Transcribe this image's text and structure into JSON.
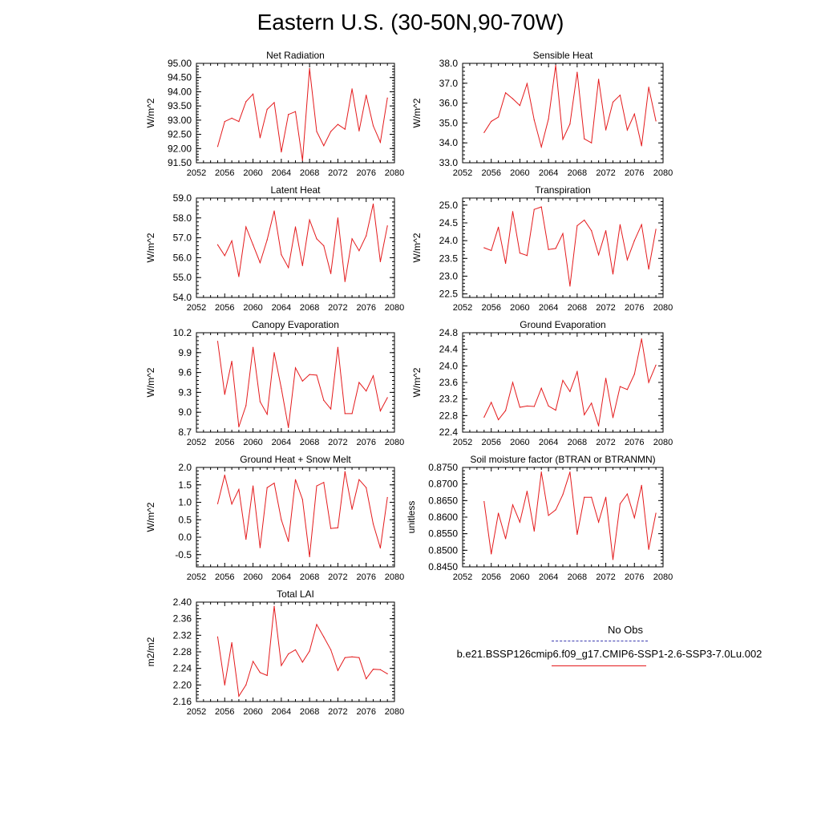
{
  "title": "Eastern U.S. (30-50N,90-70W)",
  "legend": {
    "obs_label": "No Obs",
    "model_label": "b.e21.BSSP126cmip6.f09_g17.CMIP6-SSP1-2.6-SSP3-7.0Lu.002",
    "obs_color": "#3a3ab0",
    "model_color": "#e41a1c"
  },
  "chart_data": [
    {
      "type": "line",
      "title": "Net Radiation",
      "ylabel": "W/m^2",
      "xlim": [
        2052,
        2080
      ],
      "x_ticks": [
        "2052",
        "2056",
        "2060",
        "2064",
        "2068",
        "2072",
        "2076",
        "2080"
      ],
      "ylim": [
        91.5,
        95.0
      ],
      "y_ticks": [
        "91.50",
        "92.00",
        "92.50",
        "93.00",
        "93.50",
        "94.00",
        "94.50",
        "95.00"
      ],
      "x": [
        2055,
        2056,
        2057,
        2058,
        2059,
        2060,
        2061,
        2062,
        2063,
        2064,
        2065,
        2066,
        2067,
        2068,
        2069,
        2070,
        2071,
        2072,
        2073,
        2074,
        2075,
        2076,
        2077,
        2078,
        2079
      ],
      "values": [
        92.07,
        92.95,
        93.07,
        92.95,
        93.65,
        93.92,
        92.38,
        93.38,
        93.62,
        91.88,
        93.2,
        93.3,
        91.58,
        94.82,
        92.6,
        92.1,
        92.6,
        92.85,
        92.68,
        94.1,
        92.62,
        93.88,
        92.8,
        92.22,
        93.78
      ],
      "color": "#e41a1c"
    },
    {
      "type": "line",
      "title": "Sensible Heat",
      "ylabel": "W/m^2",
      "xlim": [
        2052,
        2080
      ],
      "x_ticks": [
        "2052",
        "2056",
        "2060",
        "2064",
        "2068",
        "2072",
        "2076",
        "2080"
      ],
      "ylim": [
        33.0,
        38.0
      ],
      "y_ticks": [
        "33.0",
        "34.0",
        "35.0",
        "36.0",
        "37.0",
        "38.0"
      ],
      "x": [
        2055,
        2056,
        2057,
        2058,
        2059,
        2060,
        2061,
        2062,
        2063,
        2064,
        2065,
        2066,
        2067,
        2068,
        2069,
        2070,
        2071,
        2072,
        2073,
        2074,
        2075,
        2076,
        2077,
        2078,
        2079
      ],
      "values": [
        34.52,
        35.08,
        35.3,
        36.52,
        36.22,
        35.88,
        36.98,
        35.15,
        33.8,
        35.2,
        37.9,
        34.18,
        34.95,
        37.55,
        34.2,
        34.0,
        37.2,
        34.65,
        36.05,
        36.4,
        34.65,
        35.45,
        33.85,
        36.8,
        35.1
      ],
      "color": "#e41a1c"
    },
    {
      "type": "line",
      "title": "Latent Heat",
      "ylabel": "W/m^2",
      "xlim": [
        2052,
        2080
      ],
      "x_ticks": [
        "2052",
        "2056",
        "2060",
        "2064",
        "2068",
        "2072",
        "2076",
        "2080"
      ],
      "ylim": [
        54.0,
        59.0
      ],
      "y_ticks": [
        "54.0",
        "55.0",
        "56.0",
        "57.0",
        "58.0",
        "59.0"
      ],
      "x": [
        2055,
        2056,
        2057,
        2058,
        2059,
        2060,
        2061,
        2062,
        2063,
        2064,
        2065,
        2066,
        2067,
        2068,
        2069,
        2070,
        2071,
        2072,
        2073,
        2074,
        2075,
        2076,
        2077,
        2078,
        2079
      ],
      "values": [
        56.65,
        56.1,
        56.85,
        55.05,
        57.55,
        56.65,
        55.75,
        56.9,
        58.35,
        56.15,
        55.5,
        57.55,
        55.6,
        57.9,
        56.95,
        56.6,
        55.2,
        58.0,
        54.8,
        56.95,
        56.35,
        57.1,
        58.7,
        55.8,
        57.6
      ],
      "color": "#e41a1c"
    },
    {
      "type": "line",
      "title": "Transpiration",
      "ylabel": "W/m^2",
      "xlim": [
        2052,
        2080
      ],
      "x_ticks": [
        "2052",
        "2056",
        "2060",
        "2064",
        "2068",
        "2072",
        "2076",
        "2080"
      ],
      "ylim": [
        22.4,
        25.2
      ],
      "y_ticks": [
        "22.5",
        "23.0",
        "23.5",
        "24.0",
        "24.5",
        "25.0"
      ],
      "x": [
        2055,
        2056,
        2057,
        2058,
        2059,
        2060,
        2061,
        2062,
        2063,
        2064,
        2065,
        2066,
        2067,
        2068,
        2069,
        2070,
        2071,
        2072,
        2073,
        2074,
        2075,
        2076,
        2077,
        2078,
        2079
      ],
      "values": [
        23.8,
        23.72,
        24.38,
        23.36,
        24.82,
        23.65,
        23.58,
        24.88,
        24.95,
        23.75,
        23.78,
        24.2,
        22.72,
        24.42,
        24.58,
        24.28,
        23.6,
        24.28,
        23.06,
        24.45,
        23.46,
        24.0,
        24.45,
        23.2,
        24.32
      ],
      "color": "#e41a1c"
    },
    {
      "type": "line",
      "title": "Canopy Evaporation",
      "ylabel": "W/m^2",
      "xlim": [
        2052,
        2080
      ],
      "x_ticks": [
        "2052",
        "2056",
        "2060",
        "2064",
        "2068",
        "2072",
        "2076",
        "2080"
      ],
      "ylim": [
        8.7,
        10.2
      ],
      "y_ticks": [
        "8.7",
        "9.0",
        "9.3",
        "9.6",
        "9.9",
        "10.2"
      ],
      "x": [
        2055,
        2056,
        2057,
        2058,
        2059,
        2060,
        2061,
        2062,
        2063,
        2064,
        2065,
        2066,
        2067,
        2068,
        2069,
        2070,
        2071,
        2072,
        2073,
        2074,
        2075,
        2076,
        2077,
        2078,
        2079
      ],
      "values": [
        10.07,
        9.27,
        9.77,
        8.78,
        9.1,
        9.98,
        9.16,
        8.97,
        9.9,
        9.36,
        8.77,
        9.67,
        9.47,
        9.57,
        9.56,
        9.18,
        9.05,
        9.98,
        8.98,
        8.98,
        9.45,
        9.32,
        9.55,
        9.02,
        9.22
      ],
      "color": "#e41a1c"
    },
    {
      "type": "line",
      "title": "Ground Evaporation",
      "ylabel": "W/m^2",
      "xlim": [
        2052,
        2080
      ],
      "x_ticks": [
        "2052",
        "2056",
        "2060",
        "2064",
        "2068",
        "2072",
        "2076",
        "2080"
      ],
      "ylim": [
        22.4,
        24.8
      ],
      "y_ticks": [
        "22.4",
        "22.8",
        "23.2",
        "23.6",
        "24.0",
        "24.4",
        "24.8"
      ],
      "x": [
        2055,
        2056,
        2057,
        2058,
        2059,
        2060,
        2061,
        2062,
        2063,
        2064,
        2065,
        2066,
        2067,
        2068,
        2069,
        2070,
        2071,
        2072,
        2073,
        2074,
        2075,
        2076,
        2077,
        2078,
        2079
      ],
      "values": [
        22.76,
        23.12,
        22.7,
        22.92,
        23.6,
        23.0,
        23.03,
        23.02,
        23.46,
        23.03,
        22.93,
        23.65,
        23.38,
        23.86,
        22.82,
        23.1,
        22.55,
        23.7,
        22.75,
        23.5,
        23.43,
        23.8,
        24.65,
        23.6,
        24.02
      ],
      "color": "#e41a1c"
    },
    {
      "type": "line",
      "title": "Ground Heat + Snow Melt",
      "ylabel": "W/m^2",
      "xlim": [
        2052,
        2080
      ],
      "x_ticks": [
        "2052",
        "2056",
        "2060",
        "2064",
        "2068",
        "2072",
        "2076",
        "2080"
      ],
      "ylim": [
        -0.85,
        2.0
      ],
      "y_ticks": [
        "-0.5",
        "0.0",
        "0.5",
        "1.0",
        "1.5",
        "2.0"
      ],
      "x": [
        2055,
        2056,
        2057,
        2058,
        2059,
        2060,
        2061,
        2062,
        2063,
        2064,
        2065,
        2066,
        2067,
        2068,
        2069,
        2070,
        2071,
        2072,
        2073,
        2074,
        2075,
        2076,
        2077,
        2078,
        2079
      ],
      "values": [
        0.96,
        1.78,
        0.95,
        1.37,
        -0.06,
        1.47,
        -0.3,
        1.42,
        1.55,
        0.5,
        -0.12,
        1.65,
        1.08,
        -0.56,
        1.47,
        1.57,
        0.25,
        0.27,
        1.88,
        0.8,
        1.65,
        1.42,
        0.38,
        -0.31,
        1.14
      ],
      "color": "#e41a1c"
    },
    {
      "type": "line",
      "title": "Soil moisture factor (BTRAN or BTRANMN)",
      "ylabel": "unitless",
      "xlim": [
        2052,
        2080
      ],
      "x_ticks": [
        "2052",
        "2056",
        "2060",
        "2064",
        "2068",
        "2072",
        "2076",
        "2080"
      ],
      "ylim": [
        0.845,
        0.875
      ],
      "y_ticks": [
        "0.8450",
        "0.8500",
        "0.8550",
        "0.8600",
        "0.8650",
        "0.8700",
        "0.8750"
      ],
      "x": [
        2055,
        2056,
        2057,
        2058,
        2059,
        2060,
        2061,
        2062,
        2063,
        2064,
        2065,
        2066,
        2067,
        2068,
        2069,
        2070,
        2071,
        2072,
        2073,
        2074,
        2075,
        2076,
        2077,
        2078,
        2079
      ],
      "values": [
        0.8647,
        0.8489,
        0.8612,
        0.8535,
        0.8637,
        0.8585,
        0.8678,
        0.8558,
        0.8736,
        0.8605,
        0.8622,
        0.8668,
        0.8736,
        0.8548,
        0.866,
        0.866,
        0.8585,
        0.866,
        0.8472,
        0.864,
        0.867,
        0.8598,
        0.8696,
        0.8503,
        0.8612
      ],
      "color": "#e41a1c"
    },
    {
      "type": "line",
      "title": "Total LAI",
      "ylabel": "m2/m2",
      "xlim": [
        2052,
        2080
      ],
      "x_ticks": [
        "2052",
        "2056",
        "2060",
        "2064",
        "2068",
        "2072",
        "2076",
        "2080"
      ],
      "ylim": [
        2.16,
        2.4
      ],
      "y_ticks": [
        "2.16",
        "2.20",
        "2.24",
        "2.28",
        "2.32",
        "2.36",
        "2.40"
      ],
      "x": [
        2055,
        2056,
        2057,
        2058,
        2059,
        2060,
        2061,
        2062,
        2063,
        2064,
        2065,
        2066,
        2067,
        2068,
        2069,
        2070,
        2071,
        2072,
        2073,
        2074,
        2075,
        2076,
        2077,
        2078,
        2079
      ],
      "values": [
        2.316,
        2.2,
        2.302,
        2.173,
        2.2,
        2.257,
        2.23,
        2.223,
        2.39,
        2.247,
        2.275,
        2.285,
        2.255,
        2.282,
        2.346,
        2.316,
        2.285,
        2.235,
        2.266,
        2.268,
        2.266,
        2.215,
        2.238,
        2.237,
        2.227
      ],
      "color": "#e41a1c"
    }
  ]
}
